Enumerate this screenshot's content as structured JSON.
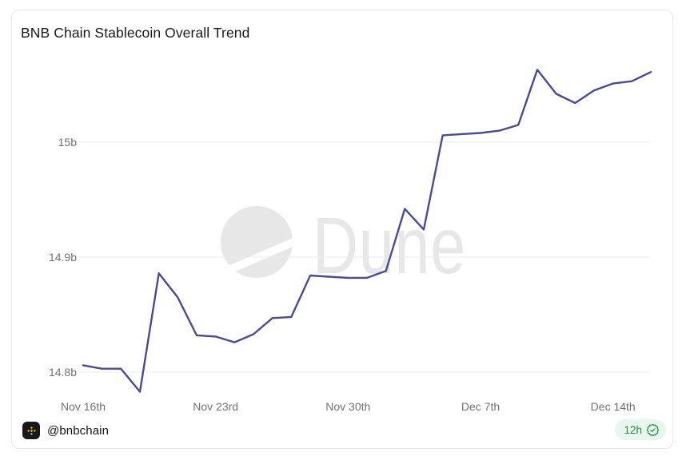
{
  "page": {
    "background": "#ffffff"
  },
  "card": {
    "title": "BNB Chain Stablecoin Overall Trend",
    "watermark": "Dune",
    "footer": {
      "handle": "@bnbchain",
      "badge_label": "12h"
    },
    "icons": {
      "footer_logo": "bnb-logo-icon",
      "badge_icon": "verified-seal-icon",
      "watermark_logo": "dune-logo-icon"
    }
  },
  "colors": {
    "card_border": "#e8e8e8",
    "title_text": "#1a1a1a",
    "axis_label": "#70707a",
    "grid_line": "#ebebeb",
    "trend_line": "#4a4a96",
    "watermark": "#e7e7e7",
    "badge_bg": "#e9f6ee",
    "badge_green": "#1a8a4a",
    "bnb_gold": "#f0b90b",
    "icon_bg": "#17181b",
    "handle_text": "#111111"
  },
  "chart_data": {
    "type": "line",
    "title": "BNB Chain Stablecoin Overall Trend",
    "x": [
      "Nov 16",
      "Nov 17",
      "Nov 18",
      "Nov 19",
      "Nov 20",
      "Nov 21",
      "Nov 22",
      "Nov 23",
      "Nov 24",
      "Nov 25",
      "Nov 26",
      "Nov 27",
      "Nov 28",
      "Nov 29",
      "Nov 30",
      "Dec 1",
      "Dec 2",
      "Dec 3",
      "Dec 4",
      "Dec 5",
      "Dec 6",
      "Dec 7",
      "Dec 8",
      "Dec 9",
      "Dec 10",
      "Dec 11",
      "Dec 12",
      "Dec 13",
      "Dec 14",
      "Dec 15",
      "Dec 16"
    ],
    "values": [
      14.806,
      14.803,
      14.803,
      14.783,
      14.886,
      14.865,
      14.832,
      14.831,
      14.826,
      14.833,
      14.847,
      14.848,
      14.884,
      14.883,
      14.882,
      14.882,
      14.888,
      14.942,
      14.924,
      15.006,
      15.007,
      15.008,
      15.01,
      15.015,
      15.063,
      15.042,
      15.034,
      15.045,
      15.051,
      15.053,
      15.061
    ],
    "y_unit_suffix": "b",
    "x_tick_labels": [
      "Nov 16th",
      "Nov 23rd",
      "Nov 30th",
      "Dec 7th",
      "Dec 14th"
    ],
    "x_tick_indices": [
      0,
      7,
      14,
      21,
      28
    ],
    "y_ticks": [
      {
        "label": "14.8b",
        "value": 14.8
      },
      {
        "label": "14.9b",
        "value": 14.9
      },
      {
        "label": "15b",
        "value": 15.0
      }
    ],
    "ylim": [
      14.76,
      15.08
    ],
    "grid": "horizontal",
    "legend": false,
    "line_color": "#4a4a96"
  }
}
